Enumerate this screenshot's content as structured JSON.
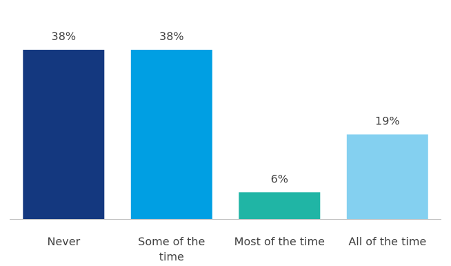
{
  "chart_data": {
    "type": "bar",
    "categories": [
      "Never",
      "Some of the time",
      "Most of the time",
      "All of the time"
    ],
    "category_lines": [
      [
        "Never"
      ],
      [
        "Some of the",
        "time"
      ],
      [
        "Most of the time"
      ],
      [
        "All of the time"
      ]
    ],
    "values": [
      38,
      38,
      6,
      19
    ],
    "data_labels": [
      "38%",
      "38%",
      "6%",
      "19%"
    ],
    "unit": "%",
    "ylim": [
      0,
      38
    ],
    "grid": false,
    "colors": [
      "#14387F",
      "#009FE3",
      "#20B5A5",
      "#84D0F0"
    ],
    "axis_color": "#BFBFBF"
  }
}
